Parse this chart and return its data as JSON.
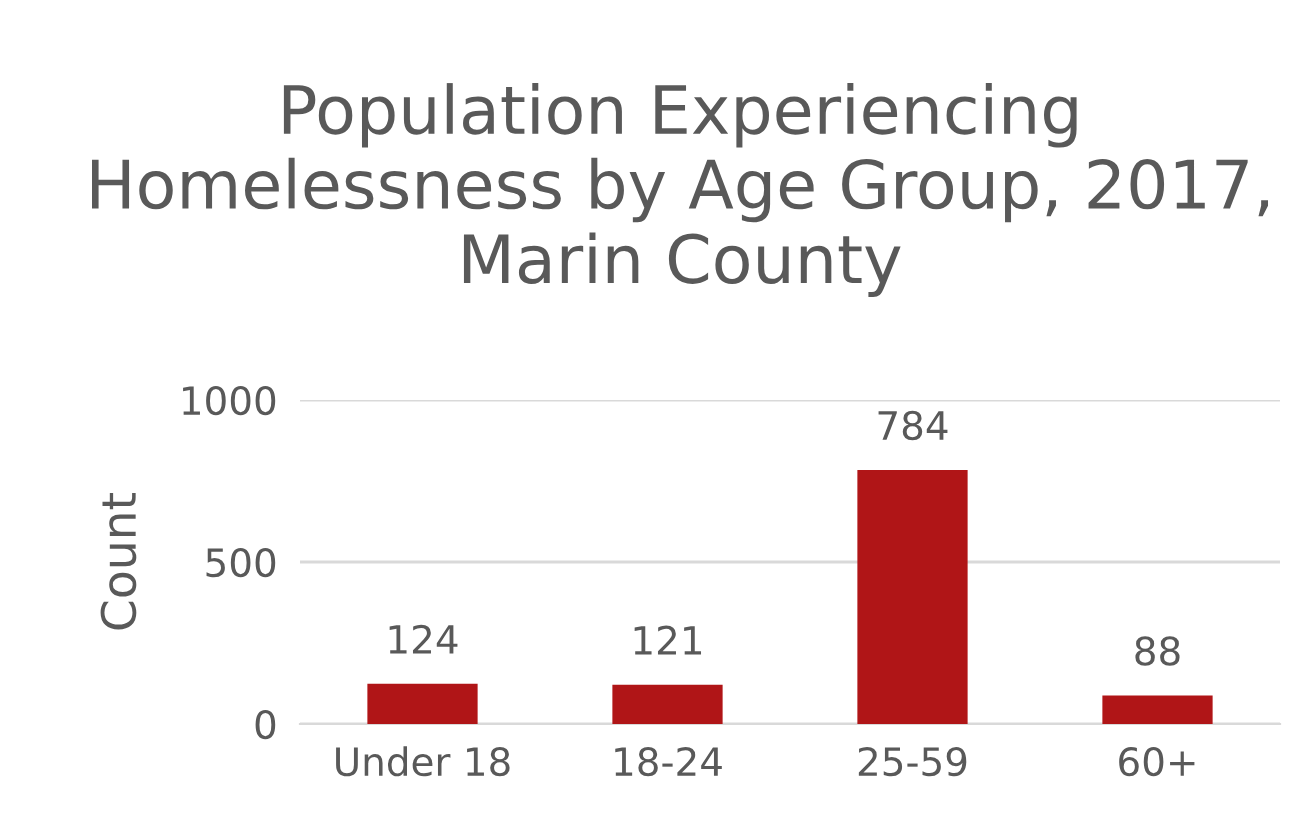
{
  "chart_data": {
    "type": "bar",
    "title": "Population Experiencing Homelessness by Age Group, 2017, Marin County",
    "ylabel": "Count",
    "categories": [
      "Under 18",
      "18-24",
      "25-59",
      "60+"
    ],
    "values": [
      124,
      121,
      784,
      88
    ],
    "color": "#b01517",
    "ylim": [
      0,
      1000
    ],
    "yticks": [
      0,
      500,
      1000
    ],
    "grid": "y",
    "data_labels": true
  }
}
